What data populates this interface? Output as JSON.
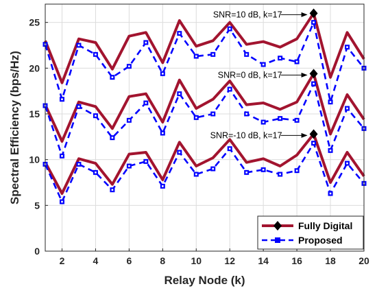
{
  "chart_data": {
    "type": "line",
    "xlabel": "Relay Node (k)",
    "ylabel": "Spectral Efficiency (bps/Hz)",
    "xlim": [
      1,
      20
    ],
    "ylim": [
      0,
      27
    ],
    "xticks": [
      2,
      4,
      6,
      8,
      10,
      12,
      14,
      16,
      18,
      20
    ],
    "yticks": [
      0,
      5,
      10,
      15,
      20,
      25
    ],
    "grid": true,
    "legend_position": "bottom-right",
    "x": [
      1,
      2,
      3,
      4,
      5,
      6,
      7,
      8,
      9,
      10,
      11,
      12,
      13,
      14,
      15,
      16,
      17,
      18,
      19,
      20
    ],
    "series": [
      {
        "name": "Fully Digital",
        "group": "SNR=10 dB",
        "color": "#a2142f",
        "marker": "diamond",
        "values": [
          23.0,
          18.4,
          23.2,
          22.8,
          19.9,
          23.5,
          23.9,
          20.6,
          25.2,
          22.4,
          23.0,
          25.0,
          22.6,
          22.9,
          22.3,
          23.2,
          26.0,
          19.0,
          23.9,
          21.0
        ]
      },
      {
        "name": "Proposed",
        "group": "SNR=10 dB",
        "color": "#0000ff",
        "marker": "square",
        "values": [
          22.6,
          16.6,
          22.5,
          21.5,
          19.0,
          20.2,
          22.8,
          19.4,
          23.8,
          21.3,
          21.5,
          24.3,
          21.5,
          20.4,
          21.1,
          20.7,
          25.0,
          16.3,
          22.3,
          20.0
        ]
      },
      {
        "name": "Fully Digital",
        "group": "SNR=0 dB",
        "color": "#a2142f",
        "marker": "diamond",
        "values": [
          16.0,
          12.0,
          16.3,
          15.8,
          13.4,
          16.9,
          17.2,
          14.1,
          18.7,
          15.6,
          16.6,
          18.6,
          16.0,
          16.2,
          15.5,
          16.3,
          19.4,
          12.8,
          17.1,
          14.4
        ]
      },
      {
        "name": "Proposed",
        "group": "SNR=0 dB",
        "color": "#0000ff",
        "marker": "square",
        "values": [
          15.9,
          10.4,
          15.8,
          14.8,
          12.4,
          14.3,
          16.2,
          12.9,
          17.2,
          14.6,
          15.0,
          17.7,
          15.0,
          14.1,
          14.5,
          14.3,
          18.3,
          11.0,
          15.6,
          13.4
        ]
      },
      {
        "name": "Fully Digital",
        "group": "SNR=-10 dB",
        "color": "#a2142f",
        "marker": "diamond",
        "values": [
          9.7,
          6.3,
          10.1,
          9.6,
          7.3,
          10.6,
          10.8,
          7.8,
          11.9,
          9.3,
          10.2,
          12.2,
          9.7,
          10.1,
          9.3,
          10.5,
          12.8,
          7.5,
          10.8,
          8.2
        ]
      },
      {
        "name": "Proposed",
        "group": "SNR=-10 dB",
        "color": "#0000ff",
        "marker": "square",
        "values": [
          9.5,
          5.4,
          9.5,
          8.6,
          6.7,
          9.3,
          9.8,
          7.1,
          10.8,
          8.4,
          9.0,
          11.2,
          8.6,
          8.9,
          8.4,
          8.8,
          11.8,
          6.3,
          9.6,
          7.4
        ]
      }
    ],
    "annotations": [
      {
        "text": "SNR=10 dB, k=17",
        "x": 17,
        "y": 26.0
      },
      {
        "text": "SNR=0 dB, k=17",
        "x": 17,
        "y": 19.4
      },
      {
        "text": "SNR=-10 dB, k=17",
        "x": 17,
        "y": 12.8
      }
    ],
    "legend": [
      {
        "label": "Fully Digital",
        "color": "#a2142f",
        "marker": "diamond",
        "style": "solid"
      },
      {
        "label": "Proposed",
        "color": "#0000ff",
        "marker": "square",
        "style": "dashed"
      }
    ]
  }
}
